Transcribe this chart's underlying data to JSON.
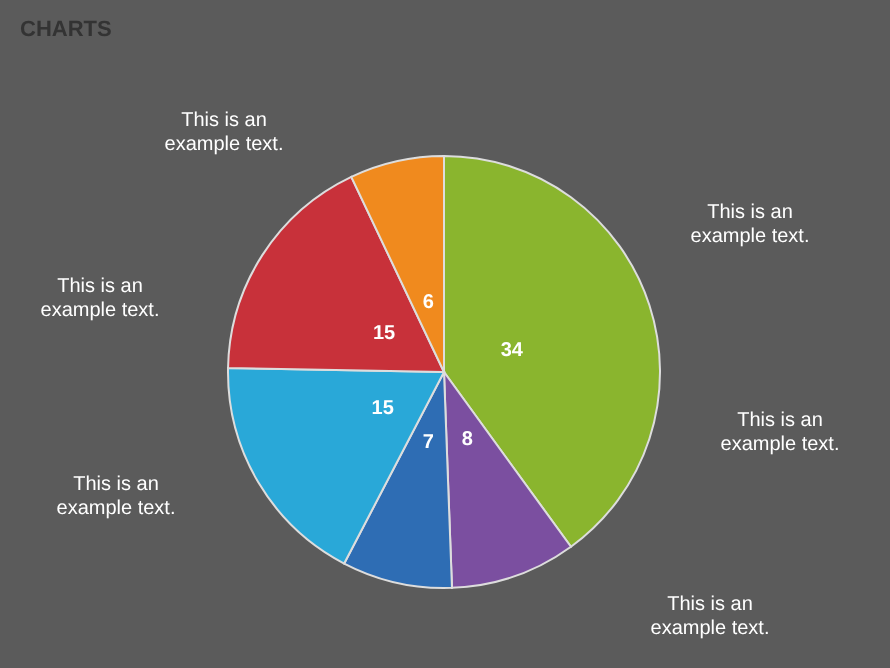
{
  "chart_data": {
    "type": "pie",
    "title": "CHARTS",
    "categories": [
      null,
      null,
      null,
      null,
      null,
      null
    ],
    "values": [
      34,
      8,
      7,
      15,
      15,
      6
    ],
    "colors": [
      "#8ab52e",
      "#7b4fa0",
      "#2e6db4",
      "#29a8d8",
      "#c8313a",
      "#f08a1e"
    ],
    "data_labels": true,
    "annotations": [
      "This is an example text.",
      "This is an example text.",
      "This is an example text.",
      "This is an example text.",
      "This is an example text.",
      "This is an example text."
    ]
  }
}
